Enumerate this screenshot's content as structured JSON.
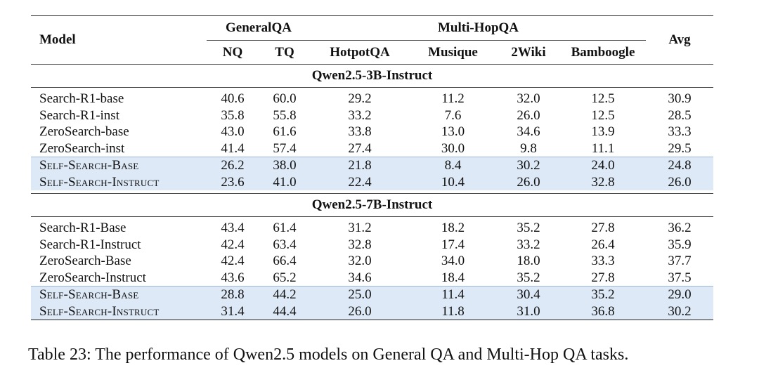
{
  "header": {
    "model": "Model",
    "groups": {
      "general": "GeneralQA",
      "multihop": "Multi-HopQA"
    },
    "avg": "Avg",
    "columns": [
      "NQ",
      "TQ",
      "HotpotQA",
      "Musique",
      "2Wiki",
      "Bamboogle"
    ]
  },
  "sections": [
    {
      "title": "Qwen2.5-3B-Instruct",
      "rows": [
        {
          "model": "Search-R1-base",
          "values": [
            "40.6",
            "60.0",
            "29.2",
            "11.2",
            "32.0",
            "12.5",
            "30.9"
          ]
        },
        {
          "model": "Search-R1-inst",
          "values": [
            "35.8",
            "55.8",
            "33.2",
            "7.6",
            "26.0",
            "12.5",
            "28.5"
          ]
        },
        {
          "model": "ZeroSearch-base",
          "values": [
            "43.0",
            "61.6",
            "33.8",
            "13.0",
            "34.6",
            "13.9",
            "33.3"
          ]
        },
        {
          "model": "ZeroSearch-inst",
          "values": [
            "41.4",
            "57.4",
            "27.4",
            "30.0",
            "9.8",
            "11.1",
            "29.5"
          ]
        },
        {
          "model": "Self-Search-Base",
          "values": [
            "26.2",
            "38.0",
            "21.8",
            "8.4",
            "30.2",
            "24.0",
            "24.8"
          ]
        },
        {
          "model": "Self-Search-Instruct",
          "values": [
            "23.6",
            "41.0",
            "22.4",
            "10.4",
            "26.0",
            "32.8",
            "26.0"
          ]
        }
      ]
    },
    {
      "title": "Qwen2.5-7B-Instruct",
      "rows": [
        {
          "model": "Search-R1-Base",
          "values": [
            "43.4",
            "61.4",
            "31.2",
            "18.2",
            "35.2",
            "27.8",
            "36.2"
          ]
        },
        {
          "model": "Search-R1-Instruct",
          "values": [
            "42.4",
            "63.4",
            "32.8",
            "17.4",
            "33.2",
            "26.4",
            "35.9"
          ]
        },
        {
          "model": "ZeroSearch-Base",
          "values": [
            "42.4",
            "66.4",
            "32.0",
            "34.0",
            "18.0",
            "33.3",
            "37.7"
          ]
        },
        {
          "model": "ZeroSearch-Instruct",
          "values": [
            "43.6",
            "65.2",
            "34.6",
            "18.4",
            "35.2",
            "27.8",
            "37.5"
          ]
        },
        {
          "model": "Self-Search-Base",
          "values": [
            "28.8",
            "44.2",
            "25.0",
            "11.4",
            "30.4",
            "35.2",
            "29.0"
          ]
        },
        {
          "model": "Self-Search-Instruct",
          "values": [
            "31.4",
            "44.4",
            "26.0",
            "11.8",
            "31.0",
            "36.8",
            "30.2"
          ]
        }
      ]
    }
  ],
  "highlight_color": "#dde9f7",
  "caption": "Table 23: The performance of Qwen2.5 models on General QA and Multi-Hop QA tasks."
}
